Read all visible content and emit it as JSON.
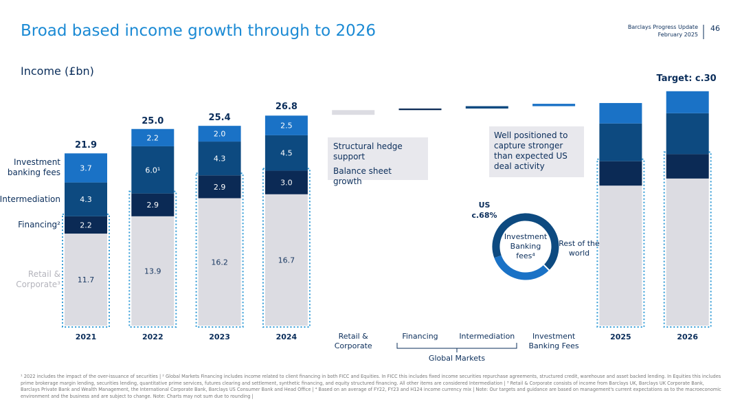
{
  "header": {
    "title": "Broad based income growth through to 2026",
    "deck": "Barclays Progress Update",
    "date": "February 2025",
    "page": "46"
  },
  "chart_data": [
    {
      "type": "bar",
      "stacked": true,
      "subtitle": "Income (£bn)",
      "categories": [
        "2021",
        "2022",
        "2023",
        "2024",
        "2025",
        "2026"
      ],
      "series": [
        {
          "name": "Retail & Corporate³",
          "color": "#dcdce2",
          "values": [
            11.7,
            13.9,
            16.2,
            16.7,
            17.8,
            18.7
          ],
          "value_labels": [
            "11.7",
            "13.9",
            "16.2",
            "16.7",
            null,
            null
          ]
        },
        {
          "name": "Financing²",
          "color": "#0b2a55",
          "values": [
            2.2,
            2.9,
            2.9,
            3.0,
            3.1,
            3.1
          ],
          "value_labels": [
            "2.2",
            "2.9",
            "2.9",
            "3.0",
            null,
            null
          ]
        },
        {
          "name": "Intermediation",
          "color": "#0d4a80",
          "values": [
            4.3,
            6.0,
            4.3,
            4.5,
            4.8,
            5.2
          ],
          "value_labels": [
            "4.3",
            "6.0¹",
            "4.3",
            "4.5",
            null,
            null
          ]
        },
        {
          "name": "Investment banking fees",
          "color": "#1a72c6",
          "values": [
            3.7,
            2.2,
            2.0,
            2.5,
            2.6,
            2.8
          ],
          "value_labels": [
            "3.7",
            "2.2",
            "2.0",
            "2.5",
            null,
            null
          ]
        }
      ],
      "totals": [
        21.9,
        25.0,
        25.4,
        26.8,
        null,
        null
      ],
      "total_labels": [
        "21.9",
        "25.0",
        "25.4",
        "26.8",
        null,
        null
      ],
      "annotation": "Target: c.30",
      "bridge": {
        "categories": [
          "Retail & Corporate",
          "Financing",
          "Intermediation",
          "Investment Banking Fees"
        ],
        "values": [
          0.6,
          0.2,
          0.3,
          0.3
        ],
        "group_label": "Global Markets",
        "notes": [
          "Structural hedge support",
          "Balance sheet growth",
          "Well positioned to capture stronger than expected US deal activity"
        ]
      }
    },
    {
      "type": "pie",
      "title": "Investment Banking fees⁴",
      "categories": [
        "US",
        "Rest of the world"
      ],
      "values": [
        68,
        32
      ],
      "value_labels": [
        "c.68%",
        null
      ],
      "colors": [
        "#0d4a80",
        "#1a72c6"
      ]
    }
  ],
  "footnote": "¹ 2022 includes the impact of the over-issuance of securities | ² Global Markets Financing includes income related to client financing in both FICC and Equities. In FICC this includes fixed income securities repurchase agreements, structured credit, warehouse and asset backed lending. In Equities this includes prime brokerage margin lending, securities lending, quantitative prime services, futures clearing and settlement, synthetic financing, and equity structured financing. All other items are considered Intermediation | ³ Retail & Corporate consists of income from Barclays UK, Barclays UK Corporate Bank, Barclays Private Bank and Wealth Management, the International Corporate Bank, Barclays US Consumer Bank and Head Office | ⁴ Based on an average of FY22, FY23 and H124 income currency mix | Note: Our targets and guidance are based on management's current expectations as to the macroeconomic environment and the business and are subject to change. Note: Charts may not sum due to rounding |"
}
